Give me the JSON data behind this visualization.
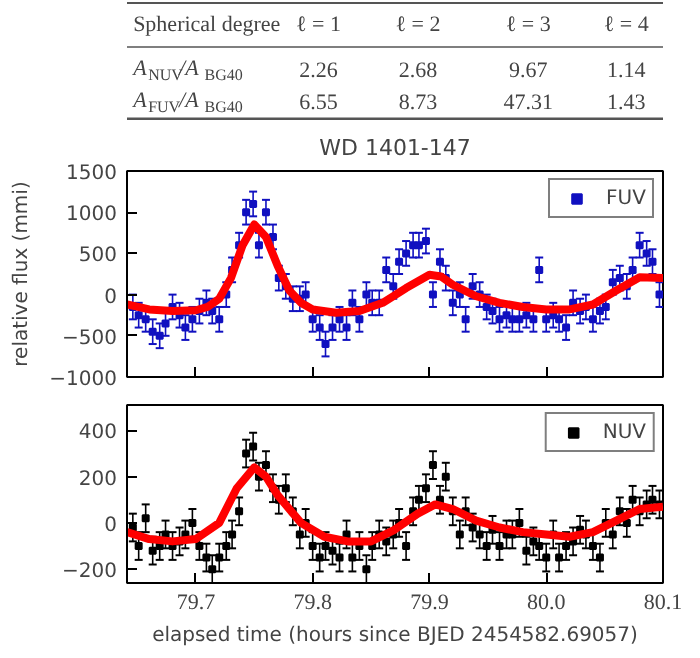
{
  "chart_data": [
    {
      "type": "scatter",
      "annotations": [
        "Spherical degree",
        "ℓ = 1",
        "ℓ = 2",
        "ℓ = 3",
        "ℓ = 4",
        "A$_{NUV}$/A$_{BG40}$",
        "2.26",
        "2.68",
        "9.67",
        "1.14",
        "A$_{FUV}$/A$_{BG40}$",
        "6.55",
        "8.73",
        "47.31",
        "1.43"
      ],
      "title": "WD 1401-147",
      "ylabel": "relative flux (mmi)",
      "xlim": [
        79.641,
        80.1
      ],
      "ylim": [
        -1000,
        1500
      ],
      "yticks": [
        -1000,
        -500,
        0,
        500,
        1000,
        1500
      ],
      "xticks": [
        79.7,
        79.8,
        79.9,
        80.0,
        80.1
      ],
      "tick_labels": "y",
      "grid": false,
      "legend": "top right",
      "marker": "square",
      "x": [
        79.646,
        79.651,
        79.657,
        79.663,
        79.669,
        79.674,
        79.68,
        79.686,
        79.691,
        79.697,
        79.703,
        79.709,
        79.714,
        79.72,
        79.726,
        79.731,
        79.737,
        79.743,
        79.749,
        79.754,
        79.76,
        79.766,
        79.771,
        79.777,
        79.783,
        79.789,
        79.794,
        79.8,
        79.806,
        79.811,
        79.817,
        79.823,
        79.829,
        79.834,
        79.84,
        79.846,
        79.851,
        79.857,
        79.863,
        79.869,
        79.874,
        79.88,
        79.886,
        79.891,
        79.897,
        79.903,
        79.909,
        79.914,
        79.92,
        79.926,
        79.931,
        79.937,
        79.943,
        79.949,
        79.954,
        79.96,
        79.966,
        79.971,
        79.977,
        79.983,
        79.989,
        79.994,
        80.0,
        80.006,
        80.011,
        80.017,
        80.023,
        80.029,
        80.034,
        80.04,
        80.046,
        80.051,
        80.057,
        80.063,
        80.069,
        80.074,
        80.08,
        80.086,
        80.091,
        80.097
      ],
      "series": [
        {
          "name": "FUV",
          "color": "#1010c0",
          "values": [
            -150,
            -250,
            -300,
            -450,
            -500,
            -350,
            -150,
            -250,
            -400,
            -300,
            -200,
            -100,
            -200,
            -300,
            0,
            300,
            600,
            1000,
            1100,
            600,
            1000,
            700,
            200,
            100,
            -50,
            -50,
            0,
            -300,
            -400,
            -600,
            -400,
            -300,
            -400,
            -100,
            -300,
            0,
            -100,
            -100,
            300,
            100,
            400,
            500,
            600,
            600,
            650,
            0,
            400,
            200,
            -100,
            0,
            -300,
            100,
            0,
            -150,
            -200,
            -300,
            -250,
            -300,
            -300,
            -250,
            -300,
            300,
            -300,
            -250,
            -300,
            -400,
            -100,
            -200,
            -150,
            -300,
            -200,
            -150,
            150,
            200,
            100,
            300,
            600,
            500,
            400,
            0
          ],
          "errors": [
            150,
            150,
            150,
            150,
            150,
            150,
            150,
            150,
            150,
            150,
            150,
            150,
            150,
            150,
            150,
            150,
            150,
            150,
            150,
            150,
            150,
            150,
            150,
            150,
            150,
            150,
            150,
            150,
            150,
            150,
            150,
            150,
            150,
            150,
            150,
            150,
            150,
            150,
            150,
            150,
            150,
            150,
            150,
            150,
            150,
            150,
            150,
            150,
            150,
            150,
            150,
            150,
            150,
            150,
            150,
            150,
            150,
            150,
            150,
            150,
            150,
            150,
            150,
            150,
            150,
            150,
            150,
            150,
            150,
            150,
            150,
            150,
            150,
            150,
            150,
            150,
            150,
            150,
            150,
            150
          ]
        },
        {
          "type": "line",
          "color": "#ff0000",
          "marker": "none",
          "x": [
            79.641,
            79.66,
            79.68,
            79.7,
            79.71,
            79.72,
            79.73,
            79.74,
            79.75,
            79.76,
            79.77,
            79.78,
            79.79,
            79.8,
            79.82,
            79.84,
            79.86,
            79.88,
            79.9,
            79.91,
            79.92,
            79.94,
            79.96,
            79.98,
            80.0,
            80.02,
            80.04,
            80.06,
            80.08,
            80.1
          ],
          "values": [
            -120,
            -180,
            -200,
            -190,
            -150,
            -50,
            200,
            600,
            850,
            700,
            350,
            50,
            -100,
            -180,
            -220,
            -200,
            -100,
            80,
            240,
            220,
            120,
            -20,
            -100,
            -150,
            -180,
            -180,
            -120,
            50,
            210,
            200
          ]
        }
      ]
    },
    {
      "type": "scatter",
      "xlabel": "elapsed time (hours since BJED 2454582.69057)",
      "xlim": [
        79.641,
        80.1
      ],
      "ylim": [
        -260,
        510
      ],
      "yticks": [
        -200,
        0,
        200,
        400
      ],
      "xticks": [
        79.7,
        79.8,
        79.9,
        {
          "value": 80.0,
          "label": "80.0"
        },
        80.1
      ],
      "grid": false,
      "legend": "top right",
      "marker": "square",
      "x": [
        79.646,
        79.651,
        79.657,
        79.663,
        79.669,
        79.674,
        79.68,
        79.686,
        79.691,
        79.697,
        79.703,
        79.709,
        79.714,
        79.72,
        79.726,
        79.731,
        79.737,
        79.743,
        79.749,
        79.754,
        79.76,
        79.766,
        79.771,
        79.777,
        79.783,
        79.789,
        79.794,
        79.8,
        79.806,
        79.811,
        79.817,
        79.823,
        79.829,
        79.834,
        79.84,
        79.846,
        79.851,
        79.857,
        79.863,
        79.869,
        79.874,
        79.88,
        79.886,
        79.891,
        79.897,
        79.903,
        79.909,
        79.914,
        79.92,
        79.926,
        79.931,
        79.937,
        79.943,
        79.949,
        79.954,
        79.96,
        79.966,
        79.971,
        79.977,
        79.983,
        79.989,
        79.994,
        80.0,
        80.006,
        80.011,
        80.017,
        80.023,
        80.029,
        80.034,
        80.04,
        80.046,
        80.051,
        80.057,
        80.063,
        80.069,
        80.074,
        80.08,
        80.086,
        80.091,
        80.097
      ],
      "series": [
        {
          "name": "NUV",
          "color": "#000000",
          "values": [
            -20,
            -100,
            20,
            -120,
            -100,
            -50,
            -100,
            -80,
            -50,
            0,
            -100,
            -150,
            -200,
            -150,
            -100,
            -50,
            50,
            300,
            330,
            200,
            250,
            150,
            100,
            150,
            50,
            -50,
            0,
            -100,
            -150,
            -100,
            -120,
            -150,
            -50,
            -150,
            -100,
            -200,
            -100,
            -50,
            -80,
            -50,
            0,
            -100,
            50,
            100,
            150,
            250,
            100,
            200,
            50,
            -50,
            50,
            -20,
            -50,
            -100,
            -30,
            -100,
            -50,
            -50,
            0,
            -120,
            -80,
            -100,
            -150,
            -50,
            -150,
            -100,
            -80,
            -30,
            -50,
            -100,
            -150,
            0,
            -50,
            50,
            0,
            100,
            50,
            80,
            100,
            80
          ],
          "errors": [
            60,
            60,
            60,
            60,
            60,
            60,
            60,
            60,
            60,
            60,
            60,
            60,
            60,
            60,
            60,
            60,
            60,
            60,
            60,
            60,
            60,
            60,
            60,
            60,
            60,
            60,
            60,
            60,
            60,
            60,
            60,
            60,
            60,
            60,
            60,
            60,
            60,
            60,
            60,
            60,
            60,
            60,
            60,
            60,
            60,
            60,
            60,
            60,
            60,
            60,
            60,
            60,
            60,
            60,
            60,
            60,
            60,
            60,
            60,
            60,
            60,
            60,
            60,
            60,
            60,
            60,
            60,
            60,
            60,
            60,
            60,
            60,
            60,
            60,
            60,
            60,
            60,
            60,
            60,
            60
          ]
        },
        {
          "type": "line",
          "color": "#ff0000",
          "marker": "none",
          "x": [
            79.641,
            79.66,
            79.68,
            79.7,
            79.72,
            79.735,
            79.75,
            79.76,
            79.77,
            79.79,
            79.81,
            79.83,
            79.85,
            79.87,
            79.89,
            79.905,
            79.92,
            79.94,
            79.96,
            79.98,
            80.0,
            80.02,
            80.04,
            80.06,
            80.08,
            80.1
          ],
          "values": [
            -40,
            -70,
            -80,
            -70,
            0,
            150,
            240,
            200,
            120,
            0,
            -60,
            -80,
            -80,
            -30,
            40,
            80,
            60,
            10,
            -20,
            -40,
            -50,
            -60,
            -40,
            10,
            60,
            70
          ]
        }
      ]
    }
  ]
}
